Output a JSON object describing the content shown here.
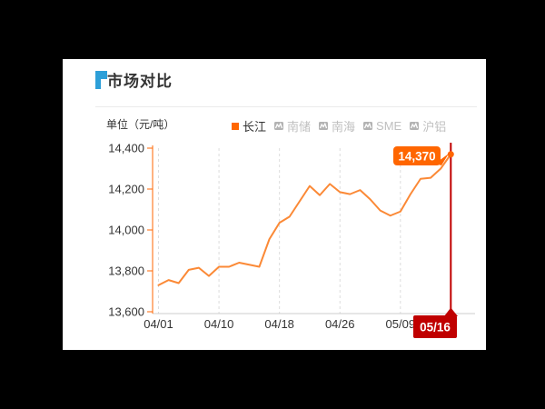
{
  "panel": {
    "title": "市场对比",
    "unit_label": "单位（元/吨）",
    "accent_color": "#2D9FD8"
  },
  "legend": {
    "items": [
      {
        "label": "长江",
        "active": true
      },
      {
        "label": "南储",
        "active": false
      },
      {
        "label": "南海",
        "active": false
      },
      {
        "label": "SME",
        "active": false
      },
      {
        "label": "沪铝",
        "active": false
      }
    ],
    "active_color": "#FF6600",
    "inactive_icon_color": "#B3B3B3",
    "inactive_text_color": "#BFBFBF"
  },
  "chart_data": {
    "type": "line",
    "title": "市场对比",
    "ylabel": "单位（元/吨）",
    "series": [
      {
        "name": "长江",
        "color": "#FB8936",
        "values": [
          13730,
          13755,
          13740,
          13805,
          13815,
          13775,
          13820,
          13820,
          13840,
          13830,
          13820,
          13955,
          14035,
          14065,
          14140,
          14215,
          14170,
          14225,
          14185,
          14175,
          14195,
          14150,
          14095,
          14070,
          14090,
          14175,
          14250,
          14255,
          14300,
          14370
        ]
      }
    ],
    "x_tick_labels": [
      "04/01",
      "04/10",
      "04/18",
      "04/26",
      "05/09"
    ],
    "x_tick_indices": [
      0,
      6,
      12,
      18,
      24
    ],
    "y_tick_labels": [
      "14,400",
      "14,200",
      "14,000",
      "13,800",
      "13,600"
    ],
    "y_tick_values": [
      14400,
      14200,
      14000,
      13800,
      13600
    ],
    "ylim": [
      13600,
      14400
    ],
    "grid": "vertical-dashed",
    "legend_position": "top",
    "axis_color": "#FF6600",
    "grid_color": "#DCDCDC",
    "x_axis_line_color": "#CCCCCC",
    "label_color": "#333333",
    "highlight": {
      "price_label": "14,370",
      "date_label": "05/16",
      "color": "#C00000",
      "badge_color": "#FF6600"
    }
  }
}
